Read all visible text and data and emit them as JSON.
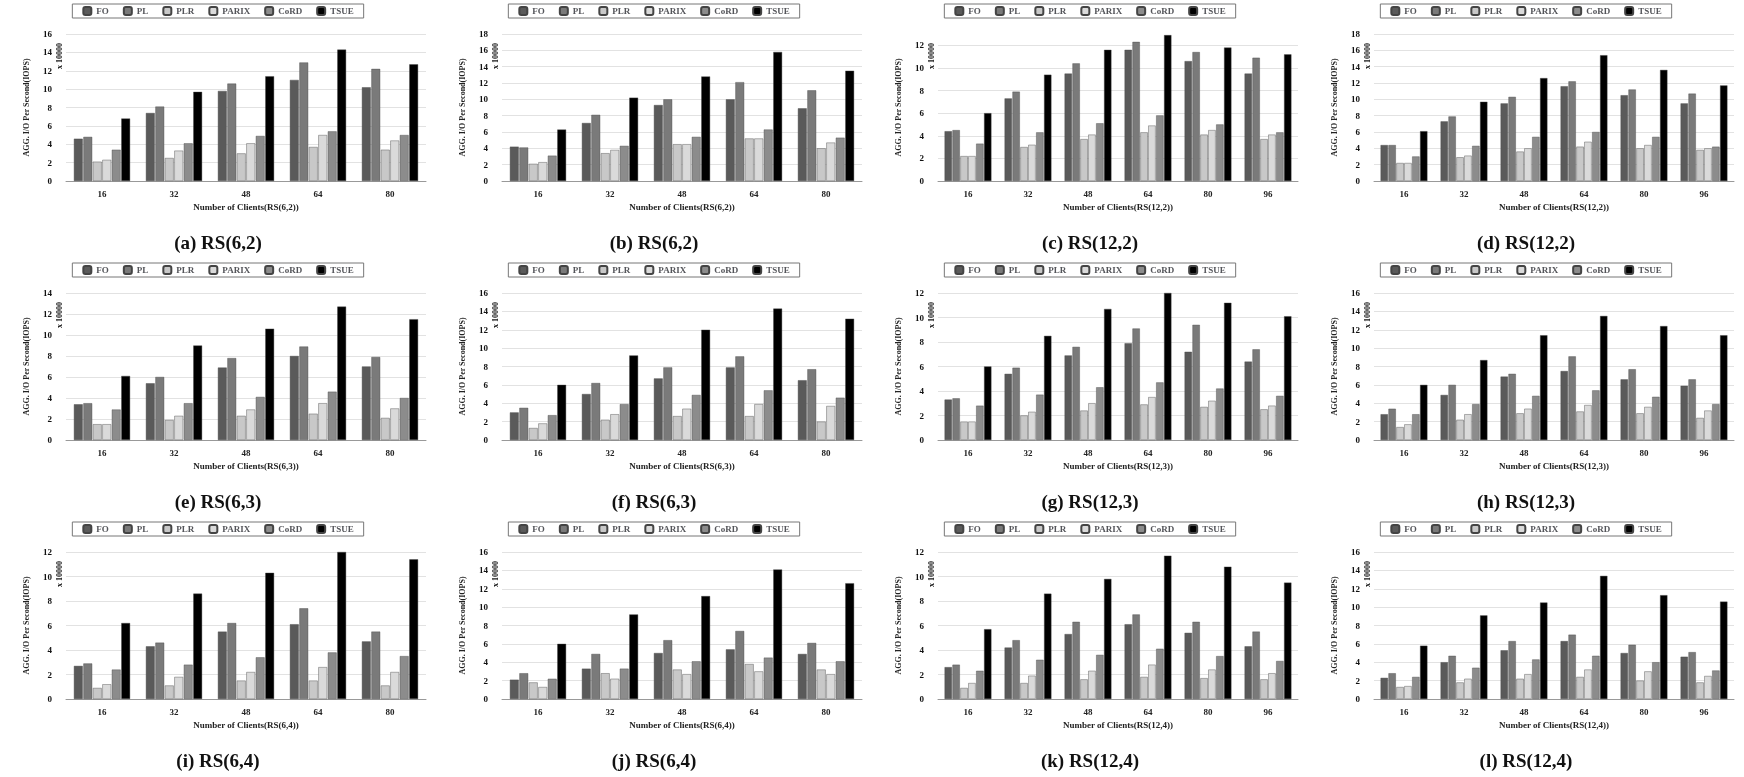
{
  "chart_data": [
    {
      "type": "bar",
      "title": "(a) RS(6,2)",
      "xlabel": "Number of Clients(RS(6,2))",
      "ylabel": "AGG. I/O Per Second(IOPS)",
      "annotations": [
        "x 10000"
      ],
      "categories": [
        "16",
        "32",
        "48",
        "64",
        "80"
      ],
      "ylim": [
        0,
        16
      ],
      "yticks": [
        0,
        2,
        4,
        6,
        8,
        10,
        12,
        14,
        16
      ],
      "grid": "y",
      "legend": "top",
      "series": [
        {
          "name": "FO",
          "color": "#5a5a5a",
          "values": [
            4.6,
            7.4,
            9.8,
            11.0,
            10.2
          ]
        },
        {
          "name": "PL",
          "color": "#7a7a7a",
          "values": [
            4.8,
            8.1,
            10.6,
            12.9,
            12.2
          ]
        },
        {
          "name": "PLR",
          "color": "#c8c8c8",
          "values": [
            2.1,
            2.5,
            3.0,
            3.7,
            3.4
          ]
        },
        {
          "name": "PARIX",
          "color": "#dadada",
          "values": [
            2.3,
            3.3,
            4.1,
            5.0,
            4.4
          ]
        },
        {
          "name": "CoRD",
          "color": "#8c8c8c",
          "values": [
            3.4,
            4.1,
            4.9,
            5.4,
            5.0
          ]
        },
        {
          "name": "TSUE",
          "color": "#000000",
          "values": [
            6.8,
            9.7,
            11.4,
            14.3,
            12.7
          ]
        }
      ]
    },
    {
      "type": "bar",
      "title": "(b) RS(6,2)",
      "xlabel": "Number of Clients(RS(6,2))",
      "ylabel": "AGG. I/O Per Second(IOPS)",
      "annotations": [
        "x 10000"
      ],
      "categories": [
        "16",
        "32",
        "48",
        "64",
        "80"
      ],
      "ylim": [
        0,
        18
      ],
      "yticks": [
        0,
        2,
        4,
        6,
        8,
        10,
        12,
        14,
        16,
        18
      ],
      "grid": "y",
      "legend": "top",
      "series": [
        {
          "name": "FO",
          "color": "#5a5a5a",
          "values": [
            4.2,
            7.1,
            9.3,
            10.0,
            8.9
          ]
        },
        {
          "name": "PL",
          "color": "#7a7a7a",
          "values": [
            4.1,
            8.1,
            10.0,
            12.1,
            11.1
          ]
        },
        {
          "name": "PLR",
          "color": "#c8c8c8",
          "values": [
            2.1,
            3.4,
            4.5,
            5.2,
            4.0
          ]
        },
        {
          "name": "PARIX",
          "color": "#dadada",
          "values": [
            2.3,
            3.8,
            4.5,
            5.2,
            4.7
          ]
        },
        {
          "name": "CoRD",
          "color": "#8c8c8c",
          "values": [
            3.1,
            4.3,
            5.4,
            6.3,
            5.3
          ]
        },
        {
          "name": "TSUE",
          "color": "#000000",
          "values": [
            6.3,
            10.2,
            12.8,
            15.8,
            13.5
          ]
        }
      ]
    },
    {
      "type": "bar",
      "title": "(c) RS(12,2)",
      "xlabel": "Number of Clients(RS(12,2))",
      "ylabel": "AGG. I/O Per Second(IOPS)",
      "annotations": [
        "x 10000"
      ],
      "categories": [
        "16",
        "32",
        "48",
        "64",
        "80",
        "96"
      ],
      "ylim": [
        0,
        13
      ],
      "yticks": [
        0,
        2,
        4,
        6,
        8,
        10,
        12
      ],
      "grid": "y",
      "legend": "top",
      "series": [
        {
          "name": "FO",
          "color": "#5a5a5a",
          "values": [
            4.4,
            7.3,
            9.5,
            11.6,
            10.6,
            9.5
          ]
        },
        {
          "name": "PL",
          "color": "#7a7a7a",
          "values": [
            4.5,
            7.9,
            10.4,
            12.3,
            11.4,
            10.9
          ]
        },
        {
          "name": "PLR",
          "color": "#c8c8c8",
          "values": [
            2.2,
            3.0,
            3.7,
            4.3,
            4.1,
            3.7
          ]
        },
        {
          "name": "PARIX",
          "color": "#dadada",
          "values": [
            2.2,
            3.2,
            4.1,
            4.9,
            4.5,
            4.1
          ]
        },
        {
          "name": "CoRD",
          "color": "#8c8c8c",
          "values": [
            3.3,
            4.3,
            5.1,
            5.8,
            5.0,
            4.3
          ]
        },
        {
          "name": "TSUE",
          "color": "#000000",
          "values": [
            6.0,
            9.4,
            11.6,
            12.9,
            11.8,
            11.2
          ]
        }
      ]
    },
    {
      "type": "bar",
      "title": "(d) RS(12,2)",
      "xlabel": "Number of Clients(RS(12,2))",
      "ylabel": "AGG. I/O Per Second(IOPS)",
      "annotations": [
        "x 10000"
      ],
      "categories": [
        "16",
        "32",
        "48",
        "64",
        "80",
        "96"
      ],
      "ylim": [
        0,
        18
      ],
      "yticks": [
        0,
        2,
        4,
        6,
        8,
        10,
        12,
        14,
        16,
        18
      ],
      "grid": "y",
      "legend": "top",
      "series": [
        {
          "name": "FO",
          "color": "#5a5a5a",
          "values": [
            4.4,
            7.3,
            9.5,
            11.6,
            10.5,
            9.5
          ]
        },
        {
          "name": "PL",
          "color": "#7a7a7a",
          "values": [
            4.4,
            7.9,
            10.3,
            12.2,
            11.2,
            10.7
          ]
        },
        {
          "name": "PLR",
          "color": "#c8c8c8",
          "values": [
            2.2,
            2.9,
            3.6,
            4.2,
            4.0,
            3.8
          ]
        },
        {
          "name": "PARIX",
          "color": "#dadada",
          "values": [
            2.2,
            3.1,
            4.0,
            4.8,
            4.4,
            4.0
          ]
        },
        {
          "name": "CoRD",
          "color": "#8c8c8c",
          "values": [
            3.0,
            4.3,
            5.4,
            6.0,
            5.4,
            4.2
          ]
        },
        {
          "name": "TSUE",
          "color": "#000000",
          "values": [
            6.1,
            9.7,
            12.6,
            15.4,
            13.6,
            11.7
          ]
        }
      ]
    },
    {
      "type": "bar",
      "title": "(e) RS(6,3)",
      "xlabel": "Number of Clients(RS(6,3))",
      "ylabel": "AGG. I/O Per Second(IOPS)",
      "annotations": [
        "x 10000"
      ],
      "categories": [
        "16",
        "32",
        "48",
        "64",
        "80"
      ],
      "ylim": [
        0,
        14
      ],
      "yticks": [
        0,
        2,
        4,
        6,
        8,
        10,
        12,
        14
      ],
      "grid": "y",
      "legend": "top",
      "series": [
        {
          "name": "FO",
          "color": "#5a5a5a",
          "values": [
            3.4,
            5.4,
            6.9,
            8.0,
            7.0
          ]
        },
        {
          "name": "PL",
          "color": "#7a7a7a",
          "values": [
            3.5,
            6.0,
            7.8,
            8.9,
            7.9
          ]
        },
        {
          "name": "PLR",
          "color": "#c8c8c8",
          "values": [
            1.5,
            1.9,
            2.3,
            2.5,
            2.1
          ]
        },
        {
          "name": "PARIX",
          "color": "#dadada",
          "values": [
            1.5,
            2.3,
            2.9,
            3.5,
            3.0
          ]
        },
        {
          "name": "CoRD",
          "color": "#8c8c8c",
          "values": [
            2.9,
            3.5,
            4.1,
            4.6,
            4.0
          ]
        },
        {
          "name": "TSUE",
          "color": "#000000",
          "values": [
            6.1,
            9.0,
            10.6,
            12.7,
            11.5
          ]
        }
      ]
    },
    {
      "type": "bar",
      "title": "(f) RS(6,3)",
      "xlabel": "Number of Clients(RS(6,3))",
      "ylabel": "AGG. I/O Per Second(IOPS)",
      "annotations": [
        "x 10000"
      ],
      "categories": [
        "16",
        "32",
        "48",
        "64",
        "80"
      ],
      "ylim": [
        0,
        16
      ],
      "yticks": [
        0,
        2,
        4,
        6,
        8,
        10,
        12,
        14,
        16
      ],
      "grid": "y",
      "legend": "top",
      "series": [
        {
          "name": "FO",
          "color": "#5a5a5a",
          "values": [
            3.0,
            5.0,
            6.7,
            7.9,
            6.5
          ]
        },
        {
          "name": "PL",
          "color": "#7a7a7a",
          "values": [
            3.5,
            6.2,
            7.9,
            9.1,
            7.7
          ]
        },
        {
          "name": "PLR",
          "color": "#c8c8c8",
          "values": [
            1.3,
            2.2,
            2.6,
            2.6,
            2.0
          ]
        },
        {
          "name": "PARIX",
          "color": "#dadada",
          "values": [
            1.8,
            2.8,
            3.4,
            3.9,
            3.7
          ]
        },
        {
          "name": "CoRD",
          "color": "#8c8c8c",
          "values": [
            2.7,
            3.9,
            4.9,
            5.4,
            4.6
          ]
        },
        {
          "name": "TSUE",
          "color": "#000000",
          "values": [
            6.0,
            9.2,
            12.0,
            14.3,
            13.2
          ]
        }
      ]
    },
    {
      "type": "bar",
      "title": "(g) RS(12,3)",
      "xlabel": "Number of Clients(RS(12,3))",
      "ylabel": "AGG. I/O Per Second(IOPS)",
      "annotations": [
        "x 10000"
      ],
      "categories": [
        "16",
        "32",
        "48",
        "64",
        "80",
        "96"
      ],
      "ylim": [
        0,
        12
      ],
      "yticks": [
        0,
        2,
        4,
        6,
        8,
        10,
        12
      ],
      "grid": "y",
      "legend": "top",
      "series": [
        {
          "name": "FO",
          "color": "#5a5a5a",
          "values": [
            3.3,
            5.4,
            6.9,
            7.9,
            7.2,
            6.4
          ]
        },
        {
          "name": "PL",
          "color": "#7a7a7a",
          "values": [
            3.4,
            5.9,
            7.6,
            9.1,
            9.4,
            7.4
          ]
        },
        {
          "name": "PLR",
          "color": "#c8c8c8",
          "values": [
            1.5,
            2.0,
            2.4,
            2.9,
            2.7,
            2.5
          ]
        },
        {
          "name": "PARIX",
          "color": "#dadada",
          "values": [
            1.5,
            2.3,
            3.0,
            3.5,
            3.2,
            2.8
          ]
        },
        {
          "name": "CoRD",
          "color": "#8c8c8c",
          "values": [
            2.8,
            3.7,
            4.3,
            4.7,
            4.2,
            3.6
          ]
        },
        {
          "name": "TSUE",
          "color": "#000000",
          "values": [
            6.0,
            8.5,
            10.7,
            12.0,
            11.2,
            10.1
          ]
        }
      ]
    },
    {
      "type": "bar",
      "title": "(h) RS(12,3)",
      "xlabel": "Number of Clients(RS(12,3))",
      "ylabel": "AGG. I/O Per Second(IOPS)",
      "annotations": [
        "x 10000"
      ],
      "categories": [
        "16",
        "32",
        "48",
        "64",
        "80",
        "96"
      ],
      "ylim": [
        0,
        16
      ],
      "yticks": [
        0,
        2,
        4,
        6,
        8,
        10,
        12,
        14,
        16
      ],
      "grid": "y",
      "legend": "top",
      "series": [
        {
          "name": "FO",
          "color": "#5a5a5a",
          "values": [
            2.8,
            4.9,
            6.9,
            7.5,
            6.6,
            5.9
          ]
        },
        {
          "name": "PL",
          "color": "#7a7a7a",
          "values": [
            3.4,
            6.0,
            7.2,
            9.1,
            7.7,
            6.6
          ]
        },
        {
          "name": "PLR",
          "color": "#c8c8c8",
          "values": [
            1.4,
            2.2,
            2.9,
            3.1,
            2.9,
            2.4
          ]
        },
        {
          "name": "PARIX",
          "color": "#dadada",
          "values": [
            1.7,
            2.8,
            3.4,
            3.8,
            3.6,
            3.2
          ]
        },
        {
          "name": "CoRD",
          "color": "#8c8c8c",
          "values": [
            2.8,
            3.9,
            4.8,
            5.4,
            4.7,
            3.9
          ]
        },
        {
          "name": "TSUE",
          "color": "#000000",
          "values": [
            6.0,
            8.7,
            11.4,
            13.5,
            12.4,
            11.4
          ]
        }
      ]
    },
    {
      "type": "bar",
      "title": "(i) RS(6,4)",
      "xlabel": "Number of Clients(RS(6,4))",
      "ylabel": "AGG. I/O Per Second(IOPS)",
      "annotations": [
        "x 10000"
      ],
      "categories": [
        "16",
        "32",
        "48",
        "64",
        "80"
      ],
      "ylim": [
        0,
        12
      ],
      "yticks": [
        0,
        2,
        4,
        6,
        8,
        10,
        12
      ],
      "grid": "y",
      "legend": "top",
      "series": [
        {
          "name": "FO",
          "color": "#5a5a5a",
          "values": [
            2.7,
            4.3,
            5.5,
            6.1,
            4.7
          ]
        },
        {
          "name": "PL",
          "color": "#7a7a7a",
          "values": [
            2.9,
            4.6,
            6.2,
            7.4,
            5.5
          ]
        },
        {
          "name": "PLR",
          "color": "#c8c8c8",
          "values": [
            0.9,
            1.1,
            1.5,
            1.5,
            1.1
          ]
        },
        {
          "name": "PARIX",
          "color": "#dadada",
          "values": [
            1.2,
            1.8,
            2.2,
            2.6,
            2.2
          ]
        },
        {
          "name": "CoRD",
          "color": "#8c8c8c",
          "values": [
            2.4,
            2.8,
            3.4,
            3.8,
            3.5
          ]
        },
        {
          "name": "TSUE",
          "color": "#000000",
          "values": [
            6.2,
            8.6,
            10.3,
            12.0,
            11.4
          ]
        }
      ]
    },
    {
      "type": "bar",
      "title": "(j) RS(6,4)",
      "xlabel": "Number of Clients(RS(6,4))",
      "ylabel": "AGG. I/O Per Second(IOPS)",
      "annotations": [
        "x 10000"
      ],
      "categories": [
        "16",
        "32",
        "48",
        "64",
        "80"
      ],
      "ylim": [
        0,
        16
      ],
      "yticks": [
        0,
        2,
        4,
        6,
        8,
        10,
        12,
        14,
        16
      ],
      "grid": "y",
      "legend": "top",
      "series": [
        {
          "name": "FO",
          "color": "#5a5a5a",
          "values": [
            2.1,
            3.3,
            5.0,
            5.4,
            4.9
          ]
        },
        {
          "name": "PL",
          "color": "#7a7a7a",
          "values": [
            2.8,
            4.9,
            6.4,
            7.4,
            6.1
          ]
        },
        {
          "name": "PLR",
          "color": "#c8c8c8",
          "values": [
            1.8,
            2.8,
            3.2,
            3.8,
            3.2
          ]
        },
        {
          "name": "PARIX",
          "color": "#dadada",
          "values": [
            1.3,
            2.2,
            2.7,
            3.0,
            2.7
          ]
        },
        {
          "name": "CoRD",
          "color": "#8c8c8c",
          "values": [
            2.2,
            3.3,
            4.1,
            4.5,
            4.1
          ]
        },
        {
          "name": "TSUE",
          "color": "#000000",
          "values": [
            6.0,
            9.2,
            11.2,
            14.1,
            12.6
          ]
        }
      ]
    },
    {
      "type": "bar",
      "title": "(k) RS(12,4)",
      "xlabel": "Number of Clients(RS(12,4))",
      "ylabel": "AGG. I/O Per Second(IOPS)",
      "annotations": [
        "x 10000"
      ],
      "categories": [
        "16",
        "32",
        "48",
        "64",
        "80",
        "96"
      ],
      "ylim": [
        0,
        12
      ],
      "yticks": [
        0,
        2,
        4,
        6,
        8,
        10,
        12
      ],
      "grid": "y",
      "legend": "top",
      "series": [
        {
          "name": "FO",
          "color": "#5a5a5a",
          "values": [
            2.6,
            4.2,
            5.3,
            6.1,
            5.4,
            4.3
          ]
        },
        {
          "name": "PL",
          "color": "#7a7a7a",
          "values": [
            2.8,
            4.8,
            6.3,
            6.9,
            6.3,
            5.5
          ]
        },
        {
          "name": "PLR",
          "color": "#c8c8c8",
          "values": [
            0.9,
            1.3,
            1.6,
            1.8,
            1.7,
            1.6
          ]
        },
        {
          "name": "PARIX",
          "color": "#dadada",
          "values": [
            1.3,
            1.9,
            2.3,
            2.8,
            2.4,
            2.1
          ]
        },
        {
          "name": "CoRD",
          "color": "#8c8c8c",
          "values": [
            2.3,
            3.2,
            3.6,
            4.1,
            3.5,
            3.1
          ]
        },
        {
          "name": "TSUE",
          "color": "#000000",
          "values": [
            5.7,
            8.6,
            9.8,
            11.7,
            10.8,
            9.5
          ]
        }
      ]
    },
    {
      "type": "bar",
      "title": "(l) RS(12,4)",
      "xlabel": "Number of Clients(RS(12,4))",
      "ylabel": "AGG. I/O Per Second(IOPS)",
      "annotations": [
        "x 10000"
      ],
      "categories": [
        "16",
        "32",
        "48",
        "64",
        "80",
        "96"
      ],
      "ylim": [
        0,
        16
      ],
      "yticks": [
        0,
        2,
        4,
        6,
        8,
        10,
        12,
        14,
        16
      ],
      "grid": "y",
      "legend": "top",
      "series": [
        {
          "name": "FO",
          "color": "#5a5a5a",
          "values": [
            2.3,
            4.0,
            5.3,
            6.3,
            5.0,
            4.6
          ]
        },
        {
          "name": "PL",
          "color": "#7a7a7a",
          "values": [
            2.8,
            4.7,
            6.3,
            7.0,
            5.9,
            5.1
          ]
        },
        {
          "name": "PLR",
          "color": "#c8c8c8",
          "values": [
            1.3,
            1.8,
            2.2,
            2.4,
            2.0,
            1.8
          ]
        },
        {
          "name": "PARIX",
          "color": "#dadada",
          "values": [
            1.4,
            2.2,
            2.7,
            3.2,
            3.0,
            2.5
          ]
        },
        {
          "name": "CoRD",
          "color": "#8c8c8c",
          "values": [
            2.4,
            3.4,
            4.3,
            4.7,
            4.0,
            3.1
          ]
        },
        {
          "name": "TSUE",
          "color": "#000000",
          "values": [
            5.8,
            9.1,
            10.5,
            13.4,
            11.3,
            10.6
          ]
        }
      ]
    }
  ]
}
